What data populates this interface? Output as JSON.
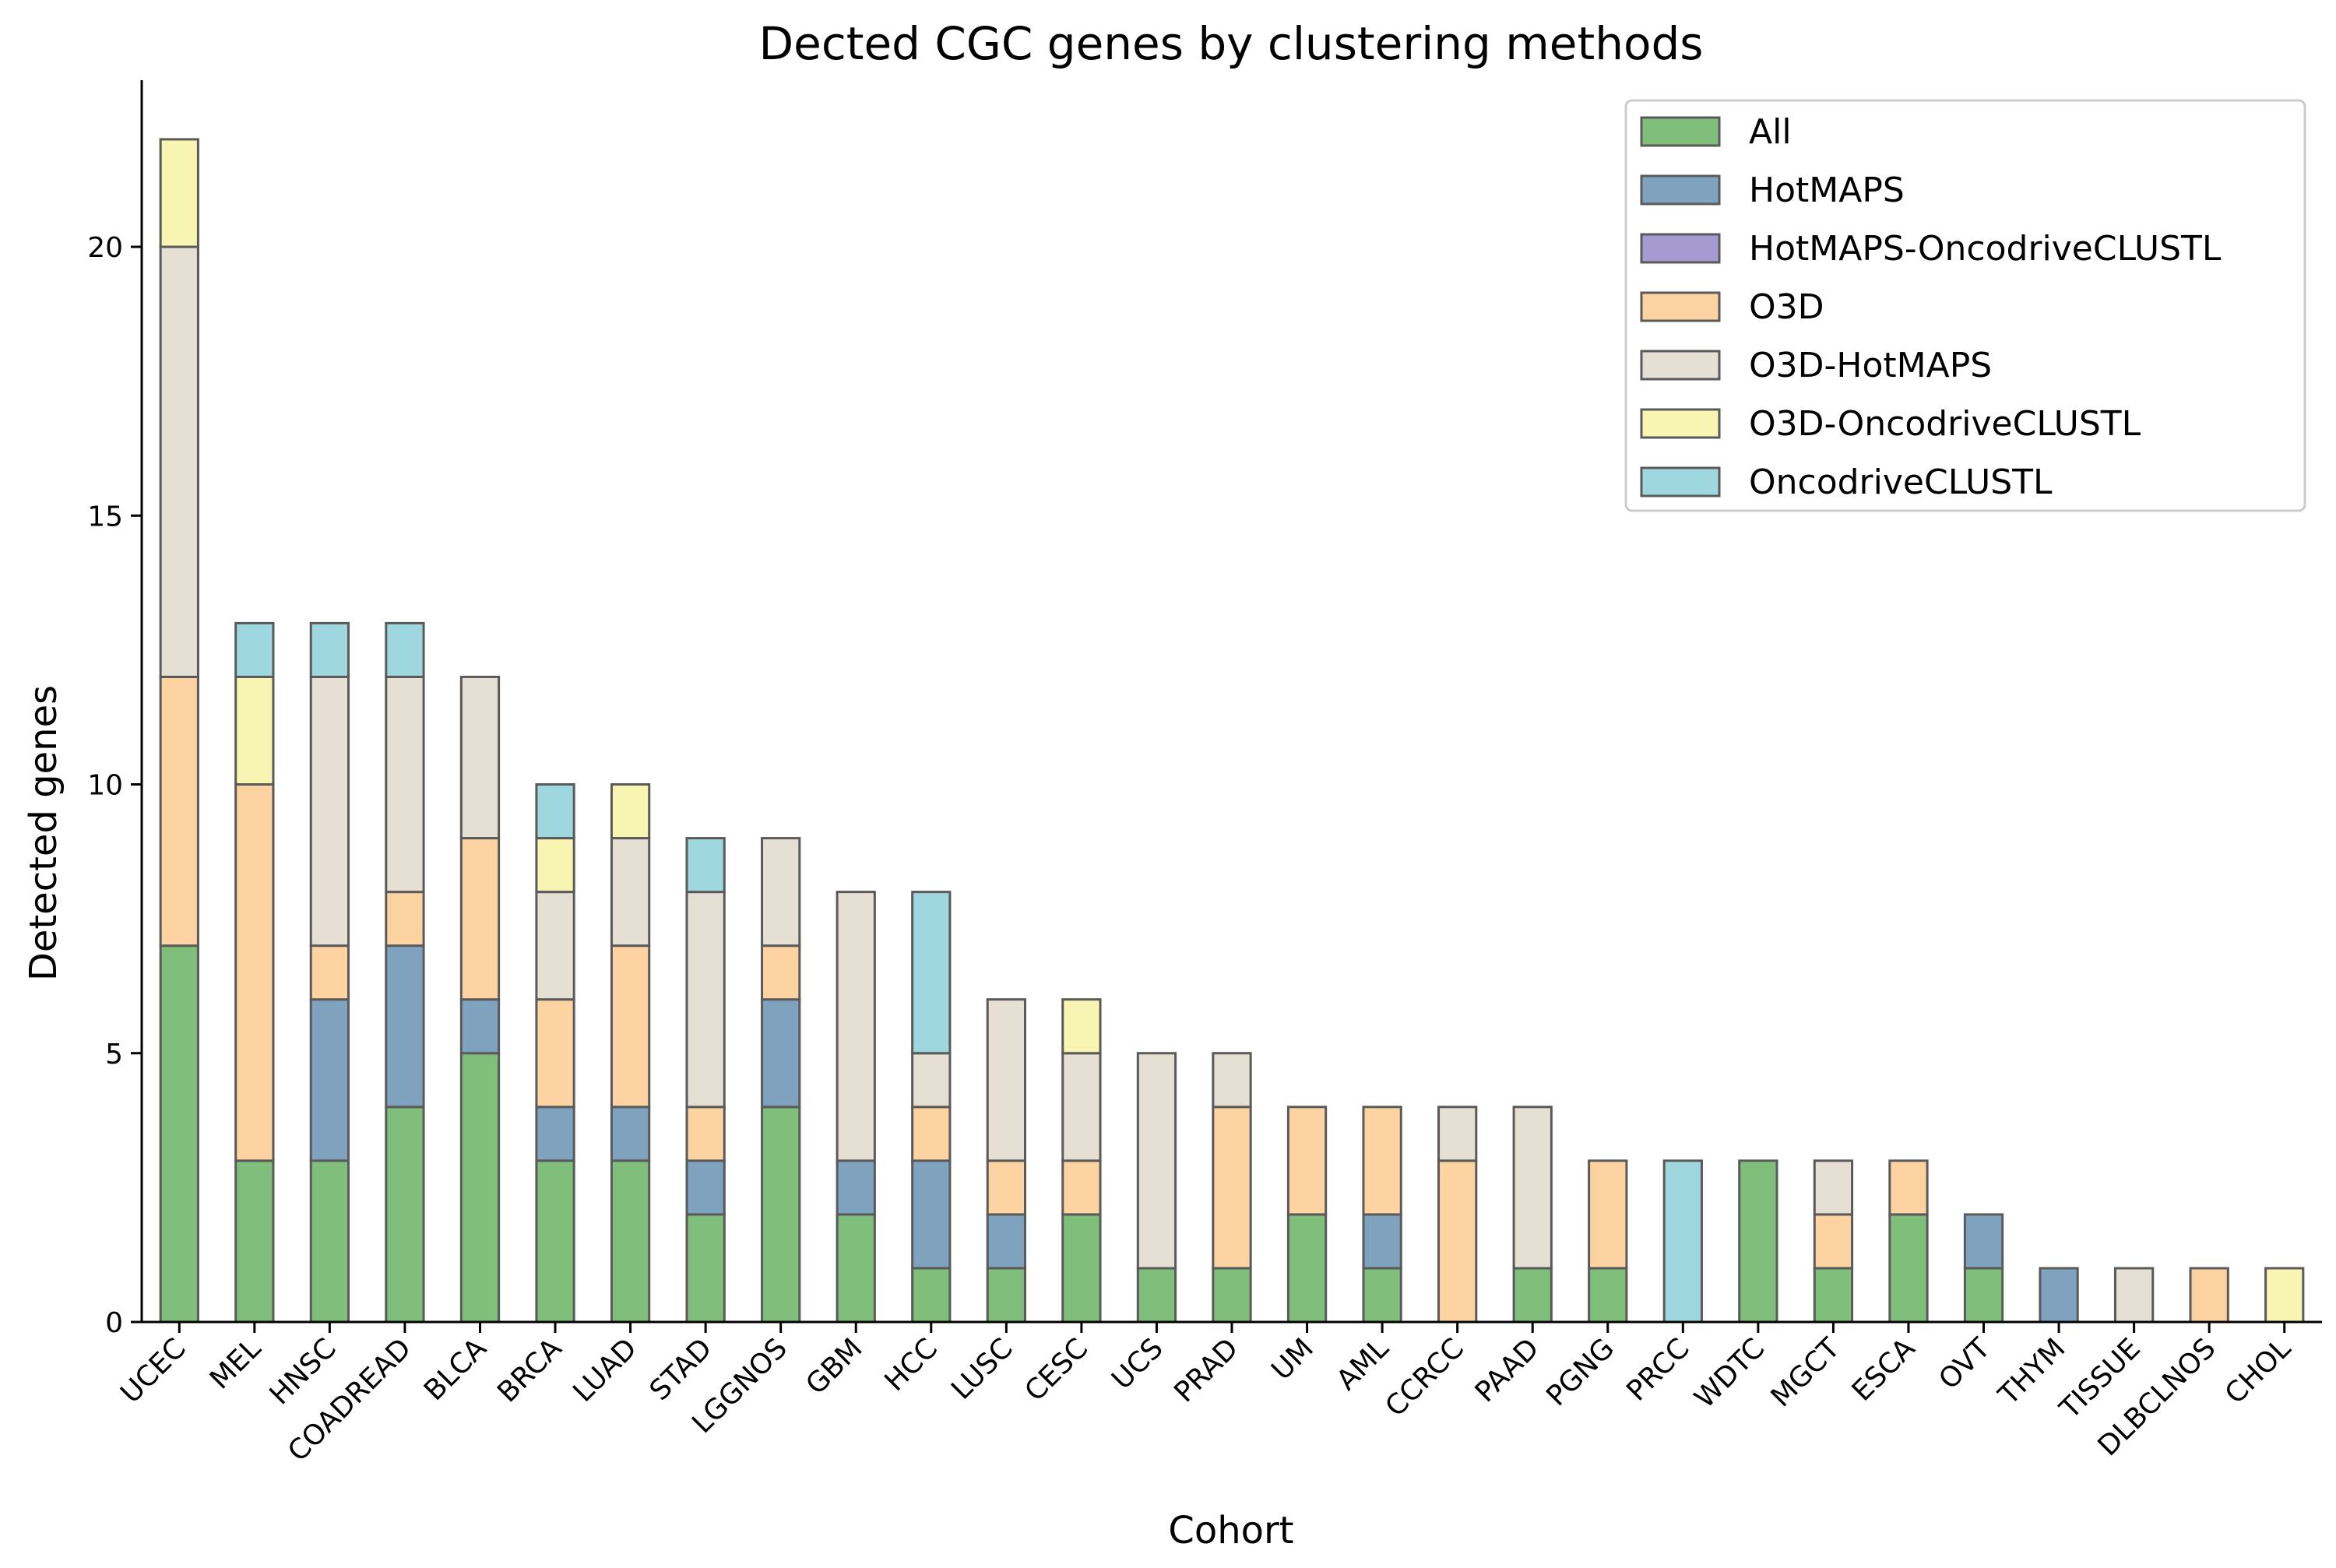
{
  "chart_data": {
    "type": "bar",
    "stacked": true,
    "title": "Dected CGC genes by clustering methods",
    "xlabel": "Cohort",
    "ylabel": "Detected genes",
    "ylim": [
      0,
      23.1
    ],
    "yticks": [
      0,
      5,
      10,
      15,
      20
    ],
    "grid": false,
    "legend_position": "top-right",
    "categories": [
      "UCEC",
      "MEL",
      "HNSC",
      "COADREAD",
      "BLCA",
      "BRCA",
      "LUAD",
      "STAD",
      "LGGNOS",
      "GBM",
      "HCC",
      "LUSC",
      "CESC",
      "UCS",
      "PRAD",
      "UM",
      "AML",
      "CCRCC",
      "PAAD",
      "PGNG",
      "PRCC",
      "WDTC",
      "MGCT",
      "ESCA",
      "OVT",
      "THYM",
      "TISSUE",
      "DLBCLNOS",
      "CHOL"
    ],
    "series": [
      {
        "name": "All",
        "color": "#7fbf7b",
        "values": [
          7,
          3,
          3,
          4,
          5,
          3,
          3,
          2,
          4,
          2,
          1,
          1,
          2,
          1,
          1,
          2,
          1,
          0,
          1,
          1,
          0,
          3,
          1,
          2,
          1,
          0,
          0,
          0,
          0
        ]
      },
      {
        "name": "HotMAPS",
        "color": "#7fa3bf",
        "values": [
          0,
          0,
          3,
          3,
          1,
          1,
          1,
          1,
          2,
          1,
          2,
          1,
          0,
          0,
          0,
          0,
          1,
          0,
          0,
          0,
          0,
          0,
          0,
          0,
          1,
          1,
          0,
          0,
          0
        ]
      },
      {
        "name": "HotMAPS-OncodriveCLUSTL",
        "color": "#a69bd0",
        "values": [
          0,
          0,
          0,
          0,
          0,
          0,
          0,
          0,
          0,
          0,
          0,
          0,
          0,
          0,
          0,
          0,
          0,
          0,
          0,
          0,
          0,
          0,
          0,
          0,
          0,
          0,
          0,
          0,
          0
        ]
      },
      {
        "name": "O3D",
        "color": "#fdd3a1",
        "values": [
          5,
          7,
          1,
          1,
          3,
          2,
          3,
          1,
          1,
          0,
          1,
          1,
          1,
          0,
          3,
          2,
          2,
          3,
          0,
          2,
          0,
          0,
          1,
          1,
          0,
          0,
          0,
          1,
          0
        ]
      },
      {
        "name": "O3D-HotMAPS",
        "color": "#e6dfd3",
        "values": [
          8,
          0,
          5,
          4,
          3,
          2,
          2,
          4,
          2,
          5,
          1,
          3,
          2,
          4,
          1,
          0,
          0,
          1,
          3,
          0,
          0,
          0,
          1,
          0,
          0,
          0,
          1,
          0,
          0
        ]
      },
      {
        "name": "O3D-OncodriveCLUSTL",
        "color": "#f8f4b1",
        "values": [
          2,
          2,
          0,
          0,
          0,
          1,
          1,
          0,
          0,
          0,
          0,
          0,
          1,
          0,
          0,
          0,
          0,
          0,
          0,
          0,
          0,
          0,
          0,
          0,
          0,
          0,
          0,
          0,
          1
        ]
      },
      {
        "name": "OncodriveCLUSTL",
        "color": "#9fd7de",
        "values": [
          0,
          1,
          1,
          1,
          0,
          1,
          0,
          1,
          0,
          0,
          3,
          0,
          0,
          0,
          0,
          0,
          0,
          0,
          0,
          0,
          3,
          0,
          0,
          0,
          0,
          0,
          0,
          0,
          0
        ]
      }
    ]
  }
}
